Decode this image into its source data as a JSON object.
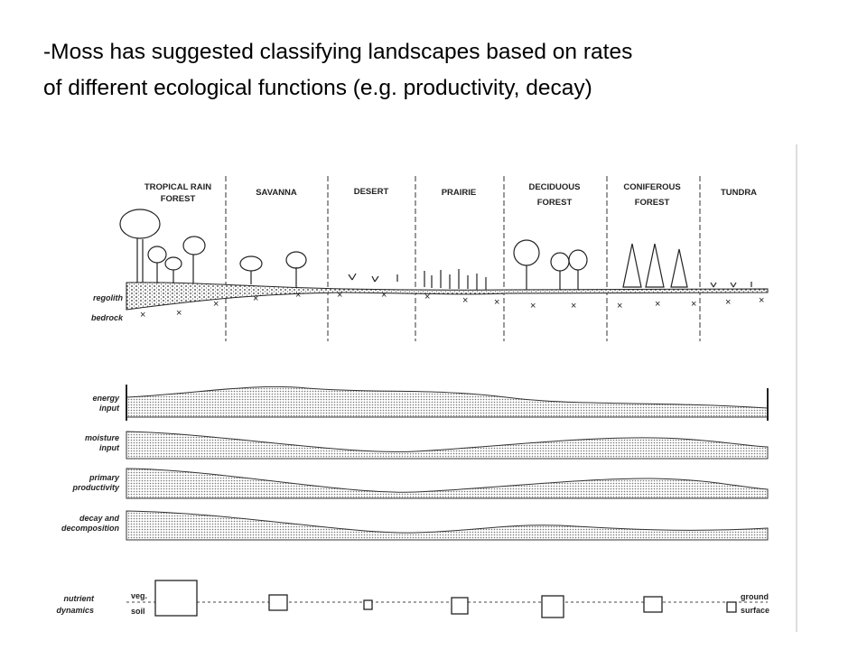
{
  "heading": {
    "lines": [
      "-Moss has suggested classifying landscapes based on rates",
      "of different ecological functions (e.g. productivity, decay)"
    ]
  },
  "biomes": [
    [
      "TROPICAL RAIN",
      "FOREST"
    ],
    [
      "SAVANNA"
    ],
    [
      "DESERT"
    ],
    [
      "PRAIRIE"
    ],
    [
      "DECIDUOUS",
      "FOREST"
    ],
    [
      "CONIFEROUS",
      "FOREST"
    ],
    [
      "TUNDRA"
    ]
  ],
  "layers": [
    "regolith",
    "bedrock"
  ],
  "profiles": [
    [
      "energy",
      "input"
    ],
    [
      "moisture",
      "input"
    ],
    [
      "primary",
      "productivity"
    ],
    [
      "decay and",
      "decomposition"
    ]
  ],
  "nutrients": {
    "label": [
      "nutrient",
      "dynamics"
    ],
    "veg": "veg.",
    "soil": "soil",
    "ground": "ground",
    "surface": "surface"
  }
}
